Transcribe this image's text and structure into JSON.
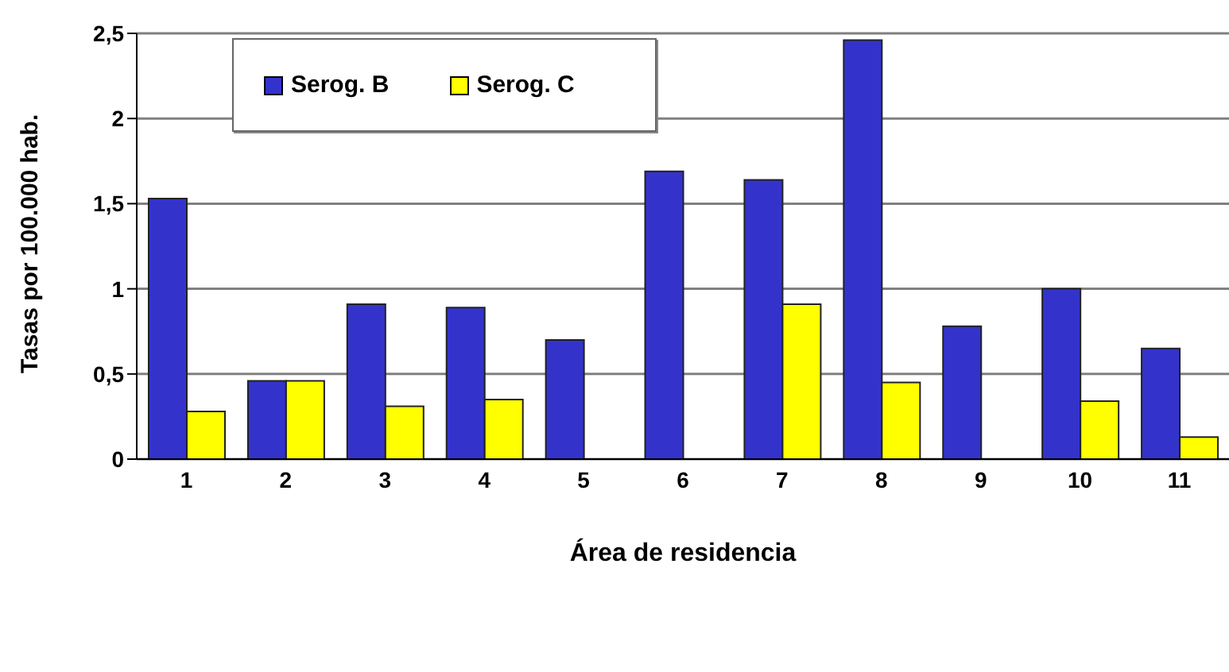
{
  "chart_data": {
    "type": "bar",
    "xlabel": "Área de residencia",
    "ylabel": "Tasas por 100.000 hab.",
    "categories": [
      "1",
      "2",
      "3",
      "4",
      "5",
      "6",
      "7",
      "8",
      "9",
      "10",
      "11"
    ],
    "series": [
      {
        "name": "Serog. B",
        "color": "#3333cc",
        "values": [
          1.53,
          0.46,
          0.91,
          0.89,
          0.7,
          1.69,
          1.64,
          2.46,
          0.78,
          1.0,
          0.65
        ]
      },
      {
        "name": "Serog. C",
        "color": "#ffff00",
        "values": [
          0.28,
          0.46,
          0.31,
          0.35,
          null,
          null,
          0.91,
          0.45,
          null,
          0.34,
          0.13
        ]
      }
    ],
    "ylim": [
      0,
      2.5
    ],
    "yticks": [
      0,
      {
        "value": 0.5,
        "label": "0,5"
      },
      1,
      {
        "value": 1.5,
        "label": "1,5"
      },
      2,
      {
        "value": 2.5,
        "label": "2,5"
      }
    ],
    "grid": "y",
    "legend": "top left"
  }
}
